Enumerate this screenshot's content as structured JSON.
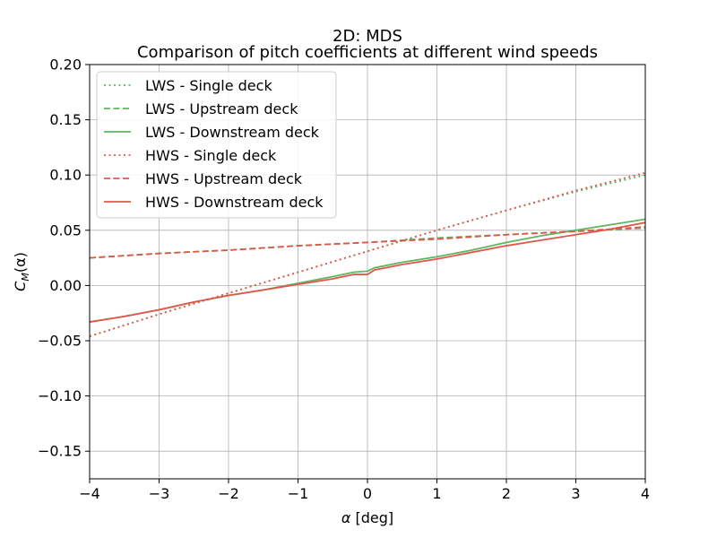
{
  "chart_data": {
    "type": "line",
    "title": "2D: MDS",
    "subtitle": "Comparison of pitch coefficients at different wind speeds",
    "xlabel_symbol": "α",
    "xlabel_unit": "[deg]",
    "ylabel_base": "C",
    "ylabel_sub": "M",
    "ylabel_arg": "(α)",
    "xlim": [
      -4,
      4
    ],
    "ylim": [
      -0.175,
      0.2
    ],
    "xticks": [
      -4,
      -3,
      -2,
      -1,
      0,
      1,
      2,
      3,
      4
    ],
    "xtick_labels": [
      "−4",
      "−3",
      "−2",
      "−1",
      "0",
      "1",
      "2",
      "3",
      "4"
    ],
    "yticks": [
      -0.15,
      -0.1,
      -0.05,
      0.0,
      0.05,
      0.1,
      0.15,
      0.2
    ],
    "ytick_labels": [
      "−0.15",
      "−0.10",
      "−0.05",
      "0.00",
      "0.05",
      "0.10",
      "0.15",
      "0.20"
    ],
    "grid": true,
    "legend_position": "upper-left",
    "colors": {
      "lws": "#5fb65f",
      "hws": "#e0574a",
      "grid": "#b0b0b0"
    },
    "series": [
      {
        "name": "LWS - Single deck",
        "group": "lws",
        "style": "dotted",
        "x": [
          -4,
          -3,
          -2,
          -1,
          0,
          1,
          2,
          3,
          4
        ],
        "y": [
          -0.046,
          -0.026,
          -0.007,
          0.012,
          0.031,
          0.05,
          0.068,
          0.085,
          0.1
        ]
      },
      {
        "name": "LWS -  Upstream deck",
        "group": "lws",
        "style": "dashed",
        "x": [
          -4,
          -3,
          -2,
          -1,
          0,
          1,
          2,
          3,
          4
        ],
        "y": [
          0.025,
          0.029,
          0.032,
          0.036,
          0.039,
          0.043,
          0.046,
          0.049,
          0.052
        ]
      },
      {
        "name": "LWS - Downstream deck",
        "group": "lws",
        "style": "solid",
        "x": [
          -4,
          -3.5,
          -3,
          -2.5,
          -2,
          -1.5,
          -1,
          -0.5,
          -0.2,
          0,
          0.1,
          0.5,
          1,
          1.5,
          2,
          2.5,
          3,
          3.5,
          4
        ],
        "y": [
          -0.033,
          -0.028,
          -0.022,
          -0.015,
          -0.009,
          -0.004,
          0.002,
          0.008,
          0.012,
          0.013,
          0.016,
          0.021,
          0.026,
          0.032,
          0.039,
          0.045,
          0.05,
          0.055,
          0.06
        ]
      },
      {
        "name": "HWS - Single deck",
        "group": "hws",
        "style": "dotted",
        "x": [
          -4,
          -3,
          -2,
          -1,
          0,
          1,
          2,
          3,
          4
        ],
        "y": [
          -0.046,
          -0.026,
          -0.007,
          0.012,
          0.031,
          0.05,
          0.068,
          0.086,
          0.102
        ]
      },
      {
        "name": "HWS - Upstream deck",
        "group": "hws",
        "style": "dashed",
        "x": [
          -4,
          -3,
          -2,
          -1,
          0,
          1,
          2,
          3,
          4
        ],
        "y": [
          0.025,
          0.029,
          0.032,
          0.036,
          0.039,
          0.042,
          0.046,
          0.049,
          0.053
        ]
      },
      {
        "name": "HWS - Downstream deck",
        "group": "hws",
        "style": "solid",
        "x": [
          -4,
          -3.5,
          -3,
          -2.5,
          -2,
          -1.5,
          -1,
          -0.5,
          -0.2,
          0,
          0.1,
          0.5,
          1,
          1.5,
          2,
          2.5,
          3,
          3.5,
          4
        ],
        "y": [
          -0.033,
          -0.028,
          -0.022,
          -0.015,
          -0.009,
          -0.004,
          0.001,
          0.006,
          0.01,
          0.01,
          0.014,
          0.019,
          0.024,
          0.03,
          0.036,
          0.041,
          0.046,
          0.051,
          0.057
        ]
      }
    ]
  }
}
